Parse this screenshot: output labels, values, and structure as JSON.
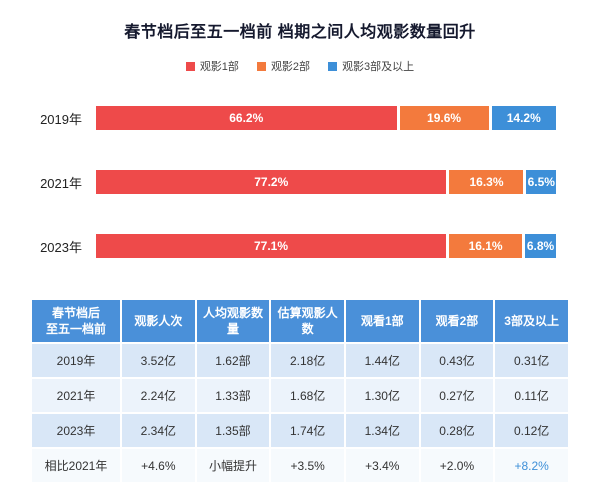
{
  "title": "春节档后至五一档前 档期之间人均观影数量回升",
  "legend": [
    {
      "label": "观影1部",
      "color": "#ee4a4a"
    },
    {
      "label": "观影2部",
      "color": "#f37a3d"
    },
    {
      "label": "观影3部及以上",
      "color": "#3d8fd8"
    }
  ],
  "chart_data": {
    "type": "bar",
    "orientation": "horizontal",
    "stacked": true,
    "unit": "%",
    "xlim": [
      0,
      100
    ],
    "categories": [
      "2019年",
      "2021年",
      "2023年"
    ],
    "series": [
      {
        "name": "观影1部",
        "color": "#ee4a4a",
        "values": [
          66.2,
          77.2,
          77.1
        ]
      },
      {
        "name": "观影2部",
        "color": "#f37a3d",
        "values": [
          19.6,
          16.3,
          16.1
        ]
      },
      {
        "name": "观影3部及以上",
        "color": "#3d8fd8",
        "values": [
          14.2,
          6.5,
          6.8
        ]
      }
    ],
    "value_labels": [
      [
        "66.2%",
        "19.6%",
        "14.2%"
      ],
      [
        "77.2%",
        "16.3%",
        "6.5%"
      ],
      [
        "77.1%",
        "16.1%",
        "6.8%"
      ]
    ],
    "legend_position": "top",
    "grid": false
  },
  "table": {
    "header_bg": "#4a90d9",
    "highlight_color": "#3d8fd8",
    "headers": [
      [
        "春节档后",
        "至五一档前"
      ],
      [
        "观影人次"
      ],
      [
        "人均观影数量"
      ],
      [
        "估算观影人数"
      ],
      [
        "观看1部"
      ],
      [
        "观看2部"
      ],
      [
        "3部及以上"
      ]
    ],
    "rows": [
      [
        "2019年",
        "3.52亿",
        "1.62部",
        "2.18亿",
        "1.44亿",
        "0.43亿",
        "0.31亿"
      ],
      [
        "2021年",
        "2.24亿",
        "1.33部",
        "1.68亿",
        "1.30亿",
        "0.27亿",
        "0.11亿"
      ],
      [
        "2023年",
        "2.34亿",
        "1.35部",
        "1.74亿",
        "1.34亿",
        "0.28亿",
        "0.12亿"
      ],
      [
        "相比2021年",
        "+4.6%",
        "小幅提升",
        "+3.5%",
        "+3.4%",
        "+2.0%",
        "+8.2%"
      ]
    ]
  }
}
